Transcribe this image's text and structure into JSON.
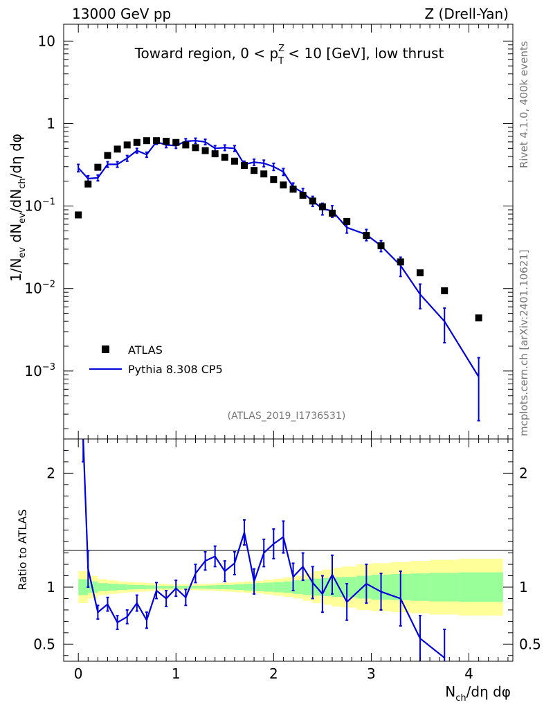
{
  "chart_data": {
    "type": "scatter",
    "header_left": "13000 GeV pp",
    "header_right": "Z (Drell-Yan)",
    "title": "Toward region, 0 < p_T^Z < 10 [GeV], low thrust",
    "xlabel": "N_ch/dη dφ",
    "ylabel": "1/N_ev dN_ev/dN_ch/dη dφ",
    "ratio_ylabel": "Ratio to ATLAS",
    "side_text_top": "Rivet 4.1.0,  400k events",
    "side_text_bottom": "mcplots.cern.ch [arXiv:2401.10621]",
    "watermark": "(ATLAS_2019_I1736531)",
    "xlim": [
      -0.15,
      4.45
    ],
    "ylim": [
      0.00015,
      16
    ],
    "yscale": "log",
    "ratio_ylim": [
      0.35,
      2.3
    ],
    "x_ticks": [
      0,
      1,
      2,
      3,
      4
    ],
    "x_tick_labels": [
      "0",
      "1",
      "2",
      "3",
      "4"
    ],
    "y_ticks": [
      0.001,
      0.01,
      0.1,
      1,
      10
    ],
    "y_tick_labels": [
      {
        "base": "10",
        "exp": "−3"
      },
      {
        "base": "10",
        "exp": "−2"
      },
      {
        "base": "10",
        "exp": "−1"
      },
      {
        "base": "1",
        "exp": ""
      },
      {
        "base": "10",
        "exp": ""
      }
    ],
    "ratio_ticks": [
      0.5,
      1,
      2
    ],
    "ratio_tick_labels": [
      "0.5",
      "1",
      "2"
    ],
    "legend": [
      {
        "label": "ATLAS",
        "marker": "square",
        "color": "#000000"
      },
      {
        "label": "Pythia 8.308 CP5",
        "marker": "line",
        "color": "#0000dd"
      }
    ],
    "colors": {
      "mc": "#0000dd",
      "band_inner": "#99ff99",
      "band_outer": "#ffff99"
    },
    "series": [
      {
        "name": "ATLAS",
        "x": [
          0.0,
          0.1,
          0.2,
          0.3,
          0.4,
          0.5,
          0.6,
          0.7,
          0.8,
          0.9,
          1.0,
          1.1,
          1.2,
          1.3,
          1.4,
          1.5,
          1.6,
          1.7,
          1.8,
          1.9,
          2.0,
          2.1,
          2.2,
          2.3,
          2.4,
          2.5,
          2.6,
          2.75,
          2.95,
          3.1,
          3.3,
          3.5,
          3.75,
          4.1
        ],
        "y": [
          0.078,
          0.185,
          0.295,
          0.41,
          0.49,
          0.55,
          0.59,
          0.62,
          0.62,
          0.61,
          0.59,
          0.55,
          0.51,
          0.47,
          0.43,
          0.39,
          0.35,
          0.31,
          0.27,
          0.245,
          0.21,
          0.18,
          0.16,
          0.135,
          0.115,
          0.098,
          0.082,
          0.065,
          0.044,
          0.033,
          0.021,
          0.0155,
          0.0094,
          0.0044
        ]
      },
      {
        "name": "Pythia 8.308 CP5",
        "x": [
          0.0,
          0.1,
          0.2,
          0.3,
          0.4,
          0.5,
          0.6,
          0.7,
          0.8,
          0.9,
          1.0,
          1.1,
          1.2,
          1.3,
          1.4,
          1.5,
          1.6,
          1.7,
          1.8,
          1.9,
          2.0,
          2.1,
          2.2,
          2.3,
          2.4,
          2.5,
          2.6,
          2.75,
          2.95,
          3.1,
          3.3,
          3.5,
          3.75,
          4.1
        ],
        "y": [
          0.29,
          0.215,
          0.22,
          0.32,
          0.32,
          0.38,
          0.47,
          0.42,
          0.6,
          0.55,
          0.54,
          0.61,
          0.62,
          0.6,
          0.5,
          0.51,
          0.5,
          0.32,
          0.34,
          0.33,
          0.3,
          0.26,
          0.17,
          0.145,
          0.115,
          0.093,
          0.087,
          0.055,
          0.045,
          0.033,
          0.019,
          0.0085,
          0.004,
          0.00085
        ],
        "err": [
          0.03,
          0.018,
          0.018,
          0.025,
          0.025,
          0.03,
          0.03,
          0.03,
          0.04,
          0.04,
          0.04,
          0.045,
          0.045,
          0.045,
          0.04,
          0.04,
          0.04,
          0.03,
          0.03,
          0.03,
          0.03,
          0.025,
          0.02,
          0.018,
          0.016,
          0.015,
          0.014,
          0.008,
          0.007,
          0.005,
          0.005,
          0.0028,
          0.0018,
          0.0006
        ]
      }
    ],
    "ratio": {
      "x": [
        0.05,
        0.1,
        0.2,
        0.3,
        0.4,
        0.5,
        0.6,
        0.7,
        0.8,
        0.9,
        1.0,
        1.1,
        1.2,
        1.3,
        1.4,
        1.5,
        1.6,
        1.7,
        1.8,
        1.9,
        2.0,
        2.1,
        2.2,
        2.3,
        2.4,
        2.5,
        2.6,
        2.75,
        2.95,
        3.1,
        3.3,
        3.5,
        3.75
      ],
      "y": [
        2.3,
        1.16,
        0.78,
        0.85,
        0.69,
        0.74,
        0.86,
        0.71,
        0.97,
        0.9,
        0.99,
        0.91,
        1.12,
        1.23,
        1.27,
        1.14,
        1.21,
        1.48,
        1.05,
        1.3,
        1.38,
        1.44,
        1.09,
        1.18,
        1.04,
        0.94,
        1.11,
        0.87,
        1.03,
        0.96,
        0.9,
        0.55,
        0.38
      ],
      "err": [
        0.2,
        0.16,
        0.06,
        0.06,
        0.06,
        0.06,
        0.07,
        0.07,
        0.07,
        0.07,
        0.07,
        0.07,
        0.08,
        0.08,
        0.09,
        0.09,
        0.1,
        0.11,
        0.11,
        0.12,
        0.13,
        0.14,
        0.12,
        0.12,
        0.14,
        0.16,
        0.17,
        0.16,
        0.17,
        0.16,
        0.24,
        0.2,
        0.25
      ]
    },
    "band": {
      "edges": [
        0.0,
        0.1,
        0.2,
        0.3,
        0.4,
        0.5,
        0.6,
        0.7,
        0.8,
        0.9,
        1.0,
        1.1,
        1.2,
        1.3,
        1.4,
        1.5,
        1.6,
        1.7,
        1.8,
        1.9,
        2.0,
        2.1,
        2.2,
        2.3,
        2.4,
        2.5,
        2.6,
        2.7,
        2.85,
        3.0,
        3.2,
        3.4,
        3.6,
        3.9,
        4.35
      ],
      "inner": [
        0.07,
        0.05,
        0.035,
        0.03,
        0.025,
        0.02,
        0.018,
        0.015,
        0.012,
        0.012,
        0.012,
        0.012,
        0.012,
        0.015,
        0.018,
        0.02,
        0.025,
        0.03,
        0.035,
        0.04,
        0.045,
        0.05,
        0.06,
        0.07,
        0.075,
        0.08,
        0.085,
        0.09,
        0.1,
        0.11,
        0.115,
        0.12,
        0.125,
        0.13
      ],
      "outer": [
        0.14,
        0.1,
        0.07,
        0.06,
        0.05,
        0.045,
        0.04,
        0.035,
        0.03,
        0.025,
        0.025,
        0.025,
        0.028,
        0.03,
        0.035,
        0.04,
        0.045,
        0.05,
        0.055,
        0.065,
        0.075,
        0.085,
        0.1,
        0.12,
        0.14,
        0.155,
        0.17,
        0.18,
        0.2,
        0.21,
        0.22,
        0.23,
        0.24,
        0.25
      ]
    }
  }
}
